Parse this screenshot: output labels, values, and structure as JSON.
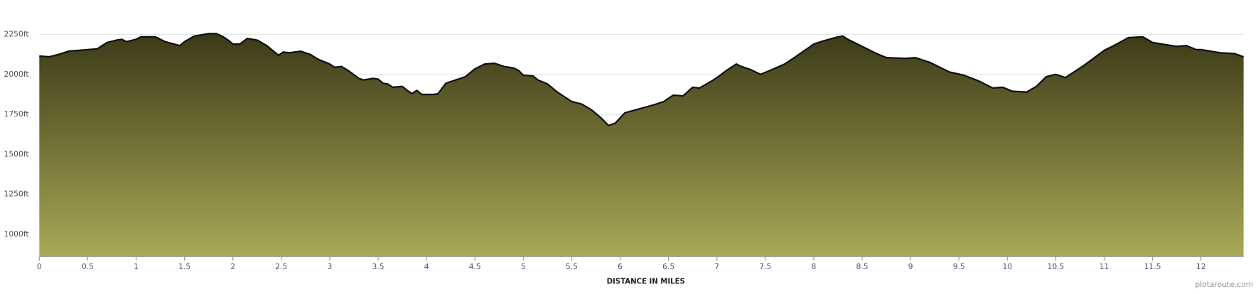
{
  "chart_data": {
    "type": "area",
    "x_label": "DISTANCE IN MILES",
    "credit": "plotaroute.com",
    "x": [
      0,
      0.1,
      0.2,
      0.3,
      0.4,
      0.5,
      0.6,
      0.7,
      0.8,
      0.85,
      0.9,
      1.0,
      1.05,
      1.2,
      1.3,
      1.45,
      1.5,
      1.6,
      1.75,
      1.83,
      1.9,
      1.95,
      2.0,
      2.07,
      2.15,
      2.25,
      2.35,
      2.45,
      2.47,
      2.52,
      2.58,
      2.7,
      2.8,
      2.88,
      3.0,
      3.05,
      3.12,
      3.2,
      3.3,
      3.35,
      3.45,
      3.5,
      3.55,
      3.6,
      3.65,
      3.75,
      3.8,
      3.85,
      3.9,
      3.95,
      4.08,
      4.12,
      4.2,
      4.3,
      4.4,
      4.5,
      4.6,
      4.7,
      4.8,
      4.9,
      4.95,
      5.0,
      5.1,
      5.15,
      5.25,
      5.35,
      5.5,
      5.6,
      5.7,
      5.8,
      5.88,
      5.95,
      6.05,
      6.2,
      6.35,
      6.45,
      6.55,
      6.65,
      6.75,
      6.82,
      6.95,
      7.0,
      7.1,
      7.15,
      7.2,
      7.25,
      7.35,
      7.45,
      7.55,
      7.7,
      7.8,
      8.0,
      8.1,
      8.25,
      8.3,
      8.35,
      8.5,
      8.65,
      8.75,
      8.95,
      9.05,
      9.2,
      9.4,
      9.55,
      9.7,
      9.85,
      9.95,
      10.05,
      10.2,
      10.3,
      10.4,
      10.5,
      10.6,
      10.8,
      11.0,
      11.1,
      11.25,
      11.4,
      11.5,
      11.65,
      11.75,
      11.85,
      11.95,
      12.0,
      12.2,
      12.35,
      12.44
    ],
    "series": [
      {
        "values": [
          2115,
          2110,
          2125,
          2145,
          2150,
          2155,
          2160,
          2200,
          2215,
          2220,
          2205,
          2220,
          2235,
          2235,
          2205,
          2180,
          2205,
          2240,
          2255,
          2255,
          2235,
          2215,
          2190,
          2190,
          2225,
          2215,
          2180,
          2130,
          2120,
          2140,
          2135,
          2145,
          2125,
          2095,
          2065,
          2045,
          2050,
          2020,
          1975,
          1965,
          1975,
          1970,
          1945,
          1940,
          1920,
          1925,
          1900,
          1880,
          1900,
          1875,
          1875,
          1880,
          1945,
          1965,
          1985,
          2035,
          2065,
          2070,
          2050,
          2040,
          2025,
          1995,
          1990,
          1965,
          1940,
          1890,
          1830,
          1815,
          1780,
          1730,
          1680,
          1695,
          1760,
          1785,
          1810,
          1830,
          1870,
          1865,
          1920,
          1915,
          1960,
          1980,
          2025,
          2045,
          2065,
          2050,
          2030,
          2000,
          2025,
          2065,
          2105,
          2190,
          2210,
          2235,
          2240,
          2220,
          2175,
          2130,
          2105,
          2100,
          2105,
          2075,
          2015,
          1995,
          1960,
          1915,
          1920,
          1895,
          1890,
          1925,
          1985,
          2000,
          1980,
          2060,
          2150,
          2180,
          2230,
          2235,
          2200,
          2185,
          2175,
          2180,
          2155,
          2155,
          2135,
          2130,
          2110
        ],
        "line_color": "#111111",
        "fill_top": "#3b3a17",
        "fill_bottom": "#aaa957"
      }
    ],
    "xlim": [
      0,
      12.44
    ],
    "ylim": [
      860,
      2415
    ],
    "xticks": [
      0,
      0.5,
      1,
      1.5,
      2,
      2.5,
      3,
      3.5,
      4,
      4.5,
      5,
      5.5,
      6,
      6.5,
      7,
      7.5,
      8,
      8.5,
      9,
      9.5,
      10,
      10.5,
      11,
      11.5,
      12
    ],
    "yticks": [
      {
        "value": 1000,
        "label": "1000ft"
      },
      {
        "value": 1250,
        "label": "1250ft"
      },
      {
        "value": 1500,
        "label": "1500ft"
      },
      {
        "value": 1750,
        "label": "1750ft"
      },
      {
        "value": 2000,
        "label": "2000ft"
      },
      {
        "value": 2250,
        "label": "2250ft"
      }
    ],
    "grid": true
  }
}
